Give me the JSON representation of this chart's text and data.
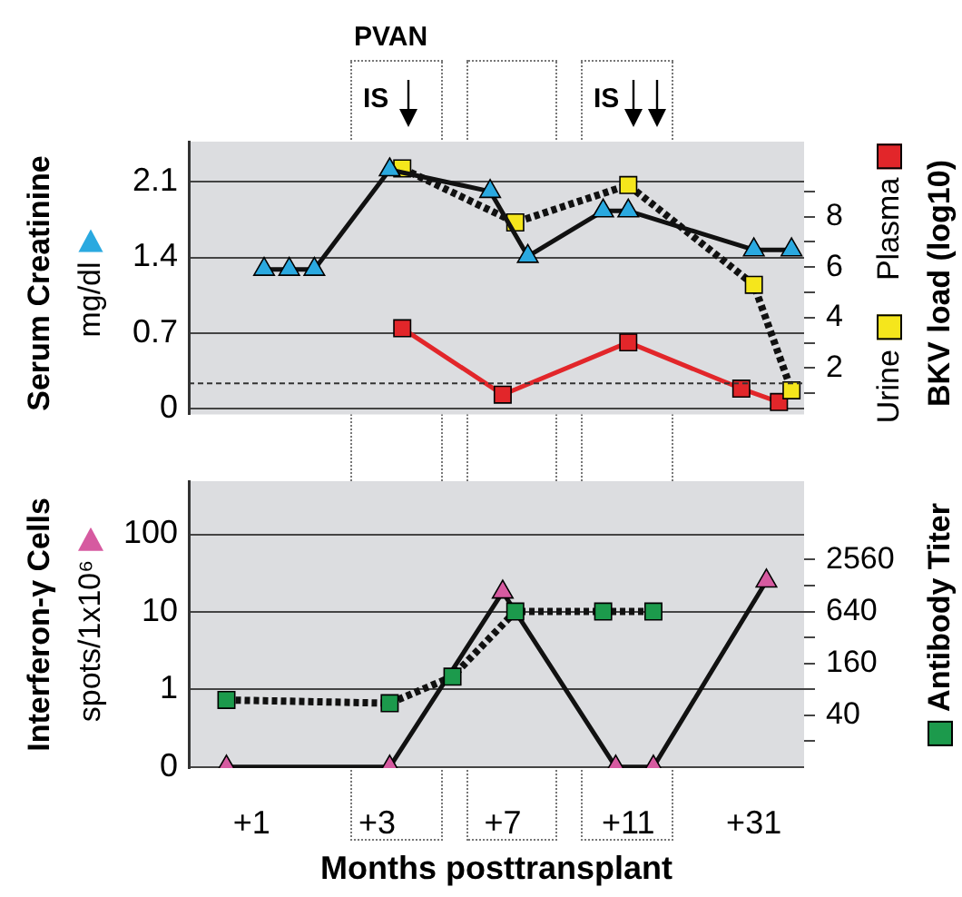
{
  "chart_data": [
    {
      "type": "line",
      "ylabel": "Serum Creatinine",
      "y2label": "BKV load (log10)",
      "categories": [
        null,
        null,
        null,
        null,
        null,
        "+1",
        null,
        null,
        null,
        null,
        null,
        null,
        null,
        null,
        null,
        "+3",
        null,
        null,
        null,
        null,
        null,
        null,
        null,
        null,
        null,
        "+7",
        null,
        null,
        null,
        null,
        null,
        null,
        null,
        null,
        null,
        "+11",
        null,
        null,
        null,
        null,
        null,
        null,
        null,
        null,
        null,
        "+31",
        null,
        null,
        null,
        null
      ],
      "ylim": [
        -0.05,
        2.47
      ],
      "yticks": [
        0,
        0.7,
        1.4,
        2.1
      ],
      "y2lim": [
        0.17,
        10.97
      ],
      "y2ticks": [
        {
          "value": 1,
          "label": null
        },
        2,
        {
          "value": 3,
          "label": null
        },
        4,
        {
          "value": 5,
          "label": null
        },
        6,
        {
          "value": 7,
          "label": null
        },
        8,
        {
          "value": 9,
          "label": null
        }
      ],
      "tick_labels": "y",
      "grid": "y",
      "legend": "right",
      "series": [
        {
          "name": "mg/dl",
          "color": "#2aa9e0",
          "marker": "triangle",
          "line_style": "solid",
          "values": [
            null,
            null,
            null,
            null,
            null,
            null,
            1.29,
            null,
            1.29,
            null,
            1.29,
            null,
            null,
            null,
            null,
            null,
            2.21,
            null,
            null,
            null,
            null,
            null,
            null,
            null,
            2.01,
            null,
            null,
            1.41,
            null,
            null,
            null,
            null,
            null,
            1.83,
            null,
            1.83,
            null,
            null,
            null,
            null,
            null,
            null,
            null,
            null,
            null,
            1.47,
            null,
            null,
            1.47,
            null
          ]
        },
        {
          "name": "Urine",
          "color": "#f5e61c",
          "marker": "square",
          "line_style": "dotted",
          "axis": "y2",
          "values": [
            null,
            null,
            null,
            null,
            null,
            null,
            null,
            null,
            null,
            null,
            null,
            null,
            null,
            null,
            null,
            null,
            null,
            9.91,
            null,
            null,
            null,
            null,
            null,
            null,
            null,
            null,
            7.77,
            null,
            null,
            null,
            null,
            null,
            null,
            null,
            null,
            9.25,
            null,
            null,
            null,
            null,
            null,
            null,
            null,
            null,
            null,
            5.3,
            null,
            null,
            1.12,
            null
          ]
        },
        {
          "name": "Plasma",
          "color": "#e2262a",
          "marker": "square",
          "line_style": "solid",
          "axis": "y2",
          "values": [
            null,
            null,
            null,
            null,
            null,
            null,
            null,
            null,
            null,
            null,
            null,
            null,
            null,
            null,
            null,
            null,
            null,
            3.58,
            null,
            null,
            null,
            null,
            null,
            null,
            null,
            0.95,
            null,
            null,
            null,
            null,
            null,
            null,
            null,
            null,
            null,
            3.02,
            null,
            null,
            null,
            null,
            null,
            null,
            null,
            null,
            1.19,
            null,
            null,
            0.66,
            null,
            null
          ]
        }
      ],
      "ref_lines": [
        {
          "axis": "y2",
          "value": 1.4,
          "line_style": "dotted"
        }
      ],
      "annotations": [
        "PVAN",
        "IS",
        "IS"
      ]
    },
    {
      "type": "line",
      "ylabel": "Interferon-γ Cells",
      "xlabel": "Months posttransplant",
      "categories": [
        null,
        null,
        null,
        null,
        null,
        "+1",
        null,
        null,
        null,
        null,
        null,
        null,
        null,
        null,
        null,
        "+3",
        null,
        null,
        null,
        null,
        null,
        null,
        null,
        null,
        null,
        "+7",
        null,
        null,
        null,
        null,
        null,
        null,
        null,
        null,
        null,
        "+11",
        null,
        null,
        null,
        null,
        null,
        null,
        null,
        null,
        null,
        "+31",
        null,
        null,
        null,
        null
      ],
      "ylim": [
        0.097,
        484
      ],
      "yticks": [
        {
          "value": 0.1,
          "label": "0"
        },
        1,
        10,
        100
      ],
      "log": "y",
      "grid": "y",
      "legend": "left",
      "series": [
        {
          "name": "spots/1x10⁶",
          "color": "#d65aa0",
          "marker": "triangle",
          "line_style": "solid",
          "values": [
            null,
            null,
            null,
            0.1,
            null,
            null,
            null,
            null,
            null,
            null,
            null,
            null,
            null,
            null,
            null,
            null,
            0.1,
            null,
            null,
            null,
            null,
            null,
            null,
            null,
            null,
            18,
            null,
            null,
            null,
            null,
            null,
            null,
            null,
            null,
            0.1,
            null,
            null,
            0.1,
            null,
            null,
            null,
            null,
            null,
            null,
            null,
            null,
            25,
            null,
            null,
            null
          ]
        }
      ]
    },
    {
      "type": "line",
      "y2label": "Antibody Titer",
      "categories": [
        null,
        null,
        null,
        null,
        null,
        "+1",
        null,
        null,
        null,
        null,
        null,
        null,
        null,
        null,
        null,
        "+3",
        null,
        null,
        null,
        null,
        null,
        null,
        null,
        null,
        null,
        "+7",
        null,
        null,
        null,
        null,
        null,
        null,
        null,
        null,
        null,
        "+11",
        null,
        null,
        null,
        null,
        null,
        null,
        null,
        null,
        null,
        "+31",
        null,
        null,
        null,
        null
      ],
      "y2lim": [
        9.7,
        20900
      ],
      "y2ticks": [
        {
          "value": 20,
          "label": null
        },
        40,
        {
          "value": 80,
          "label": null
        },
        160,
        {
          "value": 320,
          "label": null
        },
        640,
        {
          "value": 1280,
          "label": null
        },
        2560
      ],
      "log": "y2",
      "tick_labels": "y",
      "series": [
        {
          "color": "#1c9a4c",
          "marker": "square",
          "line_style": "dotted",
          "axis": "y2",
          "values": [
            null,
            null,
            null,
            60,
            null,
            null,
            null,
            null,
            null,
            null,
            null,
            null,
            null,
            null,
            null,
            null,
            55,
            null,
            null,
            null,
            null,
            112,
            null,
            null,
            null,
            null,
            640,
            null,
            null,
            null,
            null,
            null,
            null,
            640,
            null,
            null,
            null,
            640,
            null,
            null,
            null,
            null,
            null,
            null,
            null,
            null,
            null,
            null,
            null,
            null
          ]
        }
      ]
    }
  ]
}
